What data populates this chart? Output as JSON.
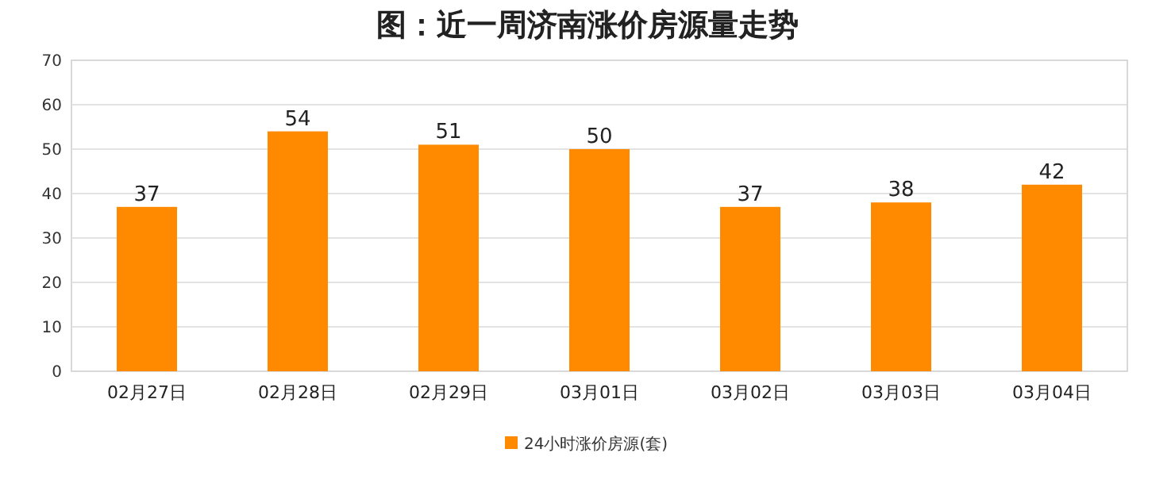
{
  "chart_data": {
    "type": "bar",
    "title": "图：近一周济南涨价房源量走势",
    "categories": [
      "02月27日",
      "02月28日",
      "02月29日",
      "03月01日",
      "03月02日",
      "03月03日",
      "03月04日"
    ],
    "series": [
      {
        "name": "24小时涨价房源(套)",
        "color": "#ff8a00",
        "values": [
          37,
          54,
          51,
          50,
          37,
          38,
          42
        ]
      }
    ],
    "ylim": [
      0,
      70
    ],
    "yticks": [
      0,
      10,
      20,
      30,
      40,
      50,
      60,
      70
    ],
    "grid": "y",
    "legend": "bottom",
    "data_labels": true
  }
}
